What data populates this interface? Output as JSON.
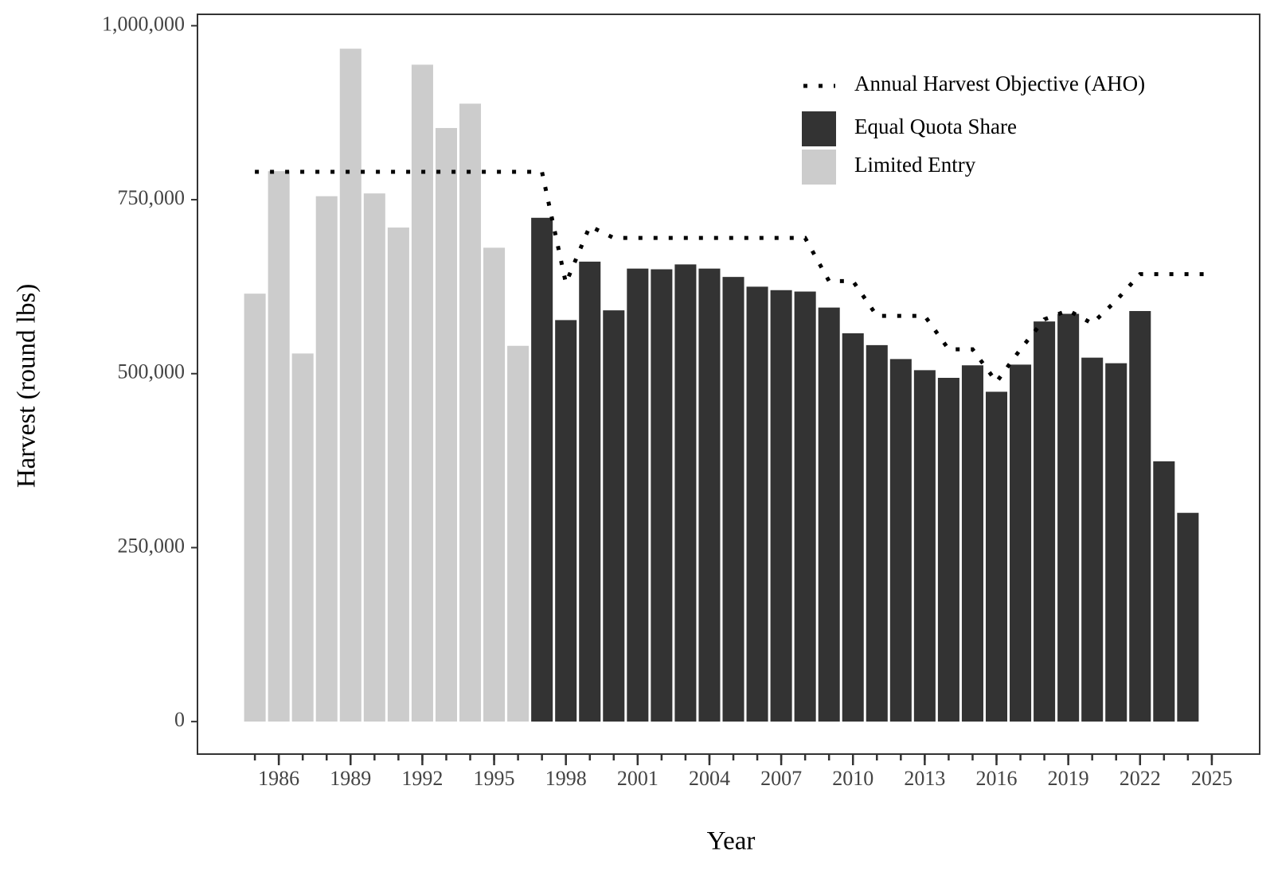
{
  "chart_data": {
    "type": "bar",
    "x_label": "Year",
    "y_label": "Harvest (round lbs)",
    "x": [
      1985,
      1986,
      1987,
      1988,
      1989,
      1990,
      1991,
      1992,
      1993,
      1994,
      1995,
      1996,
      1997,
      1998,
      1999,
      2000,
      2001,
      2002,
      2003,
      2004,
      2005,
      2006,
      2007,
      2008,
      2009,
      2010,
      2011,
      2012,
      2013,
      2014,
      2015,
      2016,
      2017,
      2018,
      2019,
      2020,
      2021,
      2022,
      2023,
      2024,
      2025
    ],
    "series": [
      {
        "name": "Annual Harvest Objective (AHO)",
        "mark": "line",
        "dash": "dotted",
        "color": "#000000",
        "values": [
          790000,
          790000,
          790000,
          790000,
          790000,
          790000,
          790000,
          790000,
          790000,
          790000,
          790000,
          790000,
          790000,
          630000,
          712000,
          695000,
          695000,
          695000,
          695000,
          695000,
          695000,
          695000,
          695000,
          695000,
          633000,
          633000,
          583000,
          583000,
          583000,
          535000,
          535000,
          488000,
          535000,
          578000,
          591000,
          572000,
          605000,
          643000,
          643000,
          643000,
          643000
        ]
      },
      {
        "name": "Equal Quota Share",
        "mark": "bar",
        "color": "#333333",
        "values": [
          null,
          null,
          null,
          null,
          null,
          null,
          null,
          null,
          null,
          null,
          null,
          null,
          724000,
          577000,
          661000,
          591000,
          651000,
          650000,
          657000,
          651000,
          639000,
          625000,
          620000,
          618000,
          595000,
          558000,
          541000,
          521000,
          505000,
          494000,
          512000,
          474000,
          513000,
          575000,
          586000,
          523000,
          515000,
          590000,
          374000,
          300000,
          null
        ]
      },
      {
        "name": "Limited Entry",
        "mark": "bar",
        "color": "#cccccc",
        "values": [
          615000,
          791000,
          529000,
          755000,
          967000,
          759000,
          710000,
          944000,
          853000,
          888000,
          681000,
          540000,
          null,
          null,
          null,
          null,
          null,
          null,
          null,
          null,
          null,
          null,
          null,
          null,
          null,
          null,
          null,
          null,
          null,
          null,
          null,
          null,
          null,
          null,
          null,
          null,
          null,
          null,
          null,
          null,
          null
        ]
      }
    ],
    "xlim": [
      1982.6,
      2027.0
    ],
    "xticks": [
      1986,
      1989,
      1992,
      1995,
      1998,
      2001,
      2004,
      2007,
      2010,
      2013,
      2016,
      2019,
      2022,
      2025
    ],
    "ylim": [
      -46700,
      1016400
    ],
    "yticks": [
      0,
      {
        "value": 250000,
        "label": "250,000"
      },
      {
        "value": 500000,
        "label": "500,000"
      },
      {
        "value": 750000,
        "label": "750,000"
      },
      {
        "value": 1000000,
        "label": "1,000,000"
      }
    ],
    "grid": false,
    "legend": "top-right"
  }
}
